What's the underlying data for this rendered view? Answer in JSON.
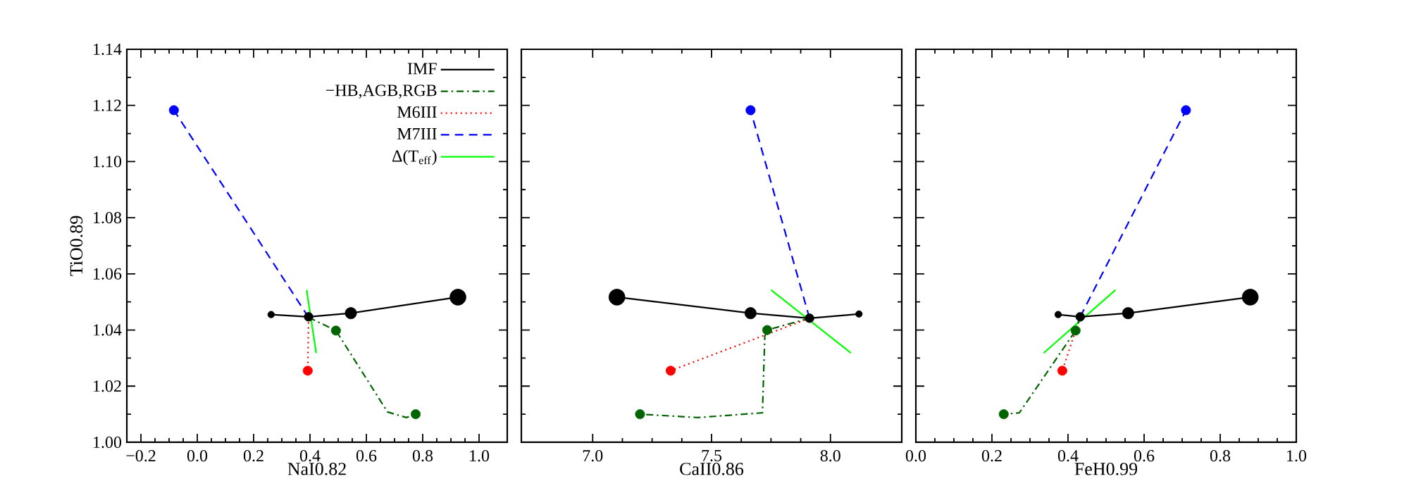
{
  "chart_data": [
    {
      "type": "line",
      "xlabel": "NaI0.82",
      "ylabel": "TiO0.89",
      "xlim": [
        -0.25,
        1.1
      ],
      "ylim": [
        1.0,
        1.14
      ],
      "xticks": [
        {
          "value": -0.2,
          "label": "−0.2"
        },
        {
          "value": 0.0,
          "label": "0.0"
        },
        {
          "value": 0.2,
          "label": "0.2"
        },
        {
          "value": 0.4,
          "label": "0.4"
        },
        {
          "value": 0.6,
          "label": "0.6"
        },
        {
          "value": 0.8,
          "label": "0.8"
        },
        {
          "value": 1.0,
          "label": "1.0"
        }
      ],
      "yticks": [
        {
          "value": 1.0,
          "label": "1.00"
        },
        {
          "value": 1.02,
          "label": "1.02"
        },
        {
          "value": 1.04,
          "label": "1.04"
        },
        {
          "value": 1.06,
          "label": "1.06"
        },
        {
          "value": 1.08,
          "label": "1.08"
        },
        {
          "value": 1.1,
          "label": "1.10"
        },
        {
          "value": 1.12,
          "label": "1.12"
        },
        {
          "value": 1.14,
          "label": "1.14"
        }
      ],
      "legend": "top right",
      "series": [
        {
          "name": "IMF",
          "color": "#000000",
          "line_style": "solid",
          "x": [
            0.262,
            0.395,
            0.545,
            0.925
          ],
          "values": [
            1.0455,
            1.0447,
            1.046,
            1.0517
          ]
        },
        {
          "type": "bubble",
          "color": "#000000",
          "x": [
            0.262,
            0.395,
            0.545,
            0.925
          ],
          "values": [
            1.0455,
            1.0447,
            1.046,
            1.0517
          ],
          "sizes": [
            0.17,
            0.3,
            0.5,
            1
          ]
        },
        {
          "name": "−HB,AGB,RGB",
          "color": "#006400",
          "line_style": "dashdot",
          "x": [
            0.395,
            0.492,
            0.675,
            0.742,
            0.775
          ],
          "values": [
            1.0445,
            1.0398,
            1.0108,
            1.0088,
            1.01
          ]
        },
        {
          "name": "M6III",
          "color": "#ff0000",
          "line_style": "dotted",
          "x": [
            0.395,
            0.392
          ],
          "values": [
            1.0445,
            1.0255
          ]
        },
        {
          "name": "M7III",
          "color": "#0000ff",
          "line_style": "dashed",
          "x": [
            0.395,
            -0.083
          ],
          "values": [
            1.0445,
            1.1183
          ]
        },
        {
          "name": "Δ(T$_{eff}$)",
          "color": "#00ff00",
          "line_style": "solid",
          "x": [
            0.388,
            0.422
          ],
          "values": [
            1.0543,
            1.0318
          ]
        },
        {
          "type": "scatter",
          "marker": "circle",
          "x": [
            0.492,
            0.775,
            0.392,
            -0.083
          ],
          "values": [
            1.0398,
            1.01,
            1.0255,
            1.1183
          ],
          "colors": [
            "#006400",
            "#006400",
            "#ff0000",
            "#0000ff"
          ]
        }
      ]
    },
    {
      "type": "line",
      "xlabel": "CaII0.86",
      "xlim": [
        6.7,
        8.3
      ],
      "ylim": [
        1.0,
        1.14
      ],
      "tick_labels": "x",
      "xticks": [
        {
          "value": 7.0,
          "label": "7.0"
        },
        {
          "value": 7.5,
          "label": "7.5"
        },
        {
          "value": 8.0,
          "label": "8.0"
        }
      ],
      "yticks": [
        {
          "value": 1.0,
          "label": null
        },
        {
          "value": 1.02,
          "label": null
        },
        {
          "value": 1.04,
          "label": null
        },
        {
          "value": 1.06,
          "label": null
        },
        {
          "value": 1.08,
          "label": null
        },
        {
          "value": 1.1,
          "label": null
        },
        {
          "value": 1.12,
          "label": null
        },
        {
          "value": 1.14,
          "label": null
        }
      ],
      "series": [
        {
          "color": "#000000",
          "line_style": "solid",
          "x": [
            7.102,
            7.664,
            7.912,
            8.12
          ],
          "values": [
            1.0517,
            1.046,
            1.0442,
            1.0457
          ]
        },
        {
          "type": "bubble",
          "color": "#000000",
          "x": [
            7.102,
            7.664,
            7.912,
            8.12
          ],
          "values": [
            1.0517,
            1.046,
            1.0442,
            1.0457
          ],
          "sizes": [
            1,
            0.5,
            0.3,
            0.17
          ]
        },
        {
          "color": "#006400",
          "line_style": "dashdot",
          "x": [
            7.912,
            7.734,
            7.724,
            7.714,
            7.443,
            7.199
          ],
          "values": [
            1.0442,
            1.04,
            1.0378,
            1.0105,
            1.0088,
            1.01
          ]
        },
        {
          "color": "#ff0000",
          "line_style": "dotted",
          "x": [
            7.912,
            7.328
          ],
          "values": [
            1.0442,
            1.0255
          ]
        },
        {
          "color": "#0000ff",
          "line_style": "dashed",
          "x": [
            7.912,
            7.664
          ],
          "values": [
            1.0442,
            1.1183
          ]
        },
        {
          "color": "#00ff00",
          "line_style": "solid",
          "x": [
            7.75,
            8.086
          ],
          "values": [
            1.0543,
            1.0318
          ]
        },
        {
          "type": "scatter",
          "marker": "circle",
          "x": [
            7.734,
            7.199,
            7.328,
            7.664
          ],
          "values": [
            1.04,
            1.01,
            1.0255,
            1.1183
          ],
          "colors": [
            "#006400",
            "#006400",
            "#ff0000",
            "#0000ff"
          ]
        }
      ]
    },
    {
      "type": "line",
      "xlabel": "FeH0.99",
      "xlim": [
        0.0,
        1.0
      ],
      "ylim": [
        1.0,
        1.14
      ],
      "tick_labels": "x",
      "xticks": [
        {
          "value": 0.0,
          "label": "0.0"
        },
        {
          "value": 0.2,
          "label": "0.2"
        },
        {
          "value": 0.4,
          "label": "0.4"
        },
        {
          "value": 0.6,
          "label": "0.6"
        },
        {
          "value": 0.8,
          "label": "0.8"
        },
        {
          "value": 1.0,
          "label": "1.0"
        }
      ],
      "yticks": [
        {
          "value": 1.0,
          "label": null
        },
        {
          "value": 1.02,
          "label": null
        },
        {
          "value": 1.04,
          "label": null
        },
        {
          "value": 1.06,
          "label": null
        },
        {
          "value": 1.08,
          "label": null
        },
        {
          "value": 1.1,
          "label": null
        },
        {
          "value": 1.12,
          "label": null
        },
        {
          "value": 1.14,
          "label": null
        }
      ],
      "series": [
        {
          "color": "#000000",
          "line_style": "solid",
          "x": [
            0.374,
            0.432,
            0.558,
            0.879
          ],
          "values": [
            1.0455,
            1.0447,
            1.046,
            1.0517
          ]
        },
        {
          "type": "bubble",
          "color": "#000000",
          "x": [
            0.374,
            0.432,
            0.558,
            0.879
          ],
          "values": [
            1.0455,
            1.0447,
            1.046,
            1.0517
          ],
          "sizes": [
            0.17,
            0.3,
            0.5,
            1
          ]
        },
        {
          "color": "#006400",
          "line_style": "dashdot",
          "x": [
            0.432,
            0.42,
            0.272,
            0.231
          ],
          "values": [
            1.0447,
            1.0398,
            1.0105,
            1.01
          ]
        },
        {
          "color": "#ff0000",
          "line_style": "dotted",
          "x": [
            0.432,
            0.385
          ],
          "values": [
            1.0447,
            1.0255
          ]
        },
        {
          "color": "#0000ff",
          "line_style": "dashed",
          "x": [
            0.432,
            0.71
          ],
          "values": [
            1.0447,
            1.1183
          ]
        },
        {
          "color": "#00ff00",
          "line_style": "solid",
          "x": [
            0.336,
            0.525
          ],
          "values": [
            1.0318,
            1.0543
          ]
        },
        {
          "type": "scatter",
          "marker": "circle",
          "x": [
            0.42,
            0.231,
            0.385,
            0.71
          ],
          "values": [
            1.0398,
            1.01,
            1.0255,
            1.1183
          ],
          "colors": [
            "#006400",
            "#006400",
            "#ff0000",
            "#0000ff"
          ]
        }
      ]
    }
  ]
}
